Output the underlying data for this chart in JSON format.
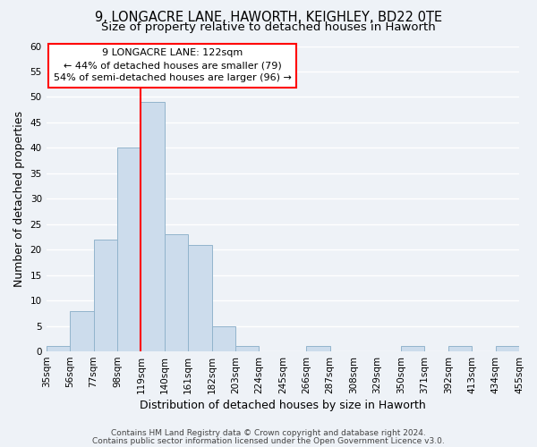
{
  "title": "9, LONGACRE LANE, HAWORTH, KEIGHLEY, BD22 0TE",
  "subtitle": "Size of property relative to detached houses in Haworth",
  "xlabel": "Distribution of detached houses by size in Haworth",
  "ylabel": "Number of detached properties",
  "bin_edges": [
    35,
    56,
    77,
    98,
    119,
    140,
    161,
    182,
    203,
    224,
    245,
    266,
    287,
    308,
    329,
    350,
    371,
    392,
    413,
    434,
    455
  ],
  "bar_heights": [
    1,
    8,
    22,
    40,
    49,
    23,
    21,
    5,
    1,
    0,
    0,
    1,
    0,
    0,
    0,
    1,
    0,
    1,
    0,
    1
  ],
  "bar_color": "#ccdcec",
  "bar_edgecolor": "#92b4cc",
  "redline_x": 119,
  "annotation_text_line1": "9 LONGACRE LANE: 122sqm",
  "annotation_text_line2": "← 44% of detached houses are smaller (79)",
  "annotation_text_line3": "54% of semi-detached houses are larger (96) →",
  "annotation_box_facecolor": "white",
  "annotation_box_edgecolor": "red",
  "redline_color": "red",
  "ylim": [
    0,
    60
  ],
  "yticks": [
    0,
    5,
    10,
    15,
    20,
    25,
    30,
    35,
    40,
    45,
    50,
    55,
    60
  ],
  "tick_labels": [
    "35sqm",
    "56sqm",
    "77sqm",
    "98sqm",
    "119sqm",
    "140sqm",
    "161sqm",
    "182sqm",
    "203sqm",
    "224sqm",
    "245sqm",
    "266sqm",
    "287sqm",
    "308sqm",
    "329sqm",
    "350sqm",
    "371sqm",
    "392sqm",
    "413sqm",
    "434sqm",
    "455sqm"
  ],
  "footer1": "Contains HM Land Registry data © Crown copyright and database right 2024.",
  "footer2": "Contains public sector information licensed under the Open Government Licence v3.0.",
  "bg_color": "#eef2f7",
  "grid_color": "white",
  "title_fontsize": 10.5,
  "subtitle_fontsize": 9.5,
  "axis_label_fontsize": 9,
  "tick_fontsize": 7.5,
  "annot_fontsize": 8,
  "footer_fontsize": 6.5
}
